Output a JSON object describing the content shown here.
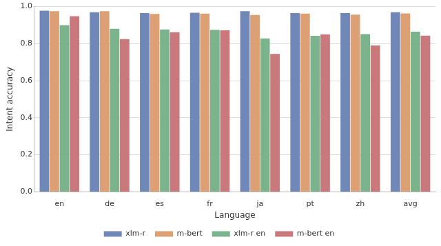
{
  "chart_data": {
    "type": "bar",
    "x_label": "Language",
    "y_label": "Intent accuracy",
    "categories": [
      "en",
      "de",
      "es",
      "fr",
      "ja",
      "pt",
      "zh",
      "avg"
    ],
    "series": [
      {
        "name": "xlm-r",
        "color": "#7088b8",
        "values": [
          0.978,
          0.97,
          0.965,
          0.967,
          0.975,
          0.965,
          0.965,
          0.97
        ]
      },
      {
        "name": "m-bert",
        "color": "#dda074",
        "values": [
          0.975,
          0.975,
          0.96,
          0.962,
          0.955,
          0.962,
          0.957,
          0.963
        ]
      },
      {
        "name": "xlm-r en",
        "color": "#7bb48c",
        "values": [
          0.9,
          0.88,
          0.877,
          0.875,
          0.828,
          0.842,
          0.852,
          0.865
        ]
      },
      {
        "name": "m-bert en",
        "color": "#c9787c",
        "values": [
          0.948,
          0.825,
          0.862,
          0.872,
          0.745,
          0.85,
          0.79,
          0.843
        ]
      }
    ],
    "ylim": [
      0,
      1
    ],
    "yticks": [
      {
        "value": 0,
        "label": "0.0"
      },
      0.2,
      0.4,
      0.6,
      0.8,
      {
        "value": 1,
        "label": "1.0"
      }
    ],
    "grid": true,
    "legend": "bottom"
  }
}
